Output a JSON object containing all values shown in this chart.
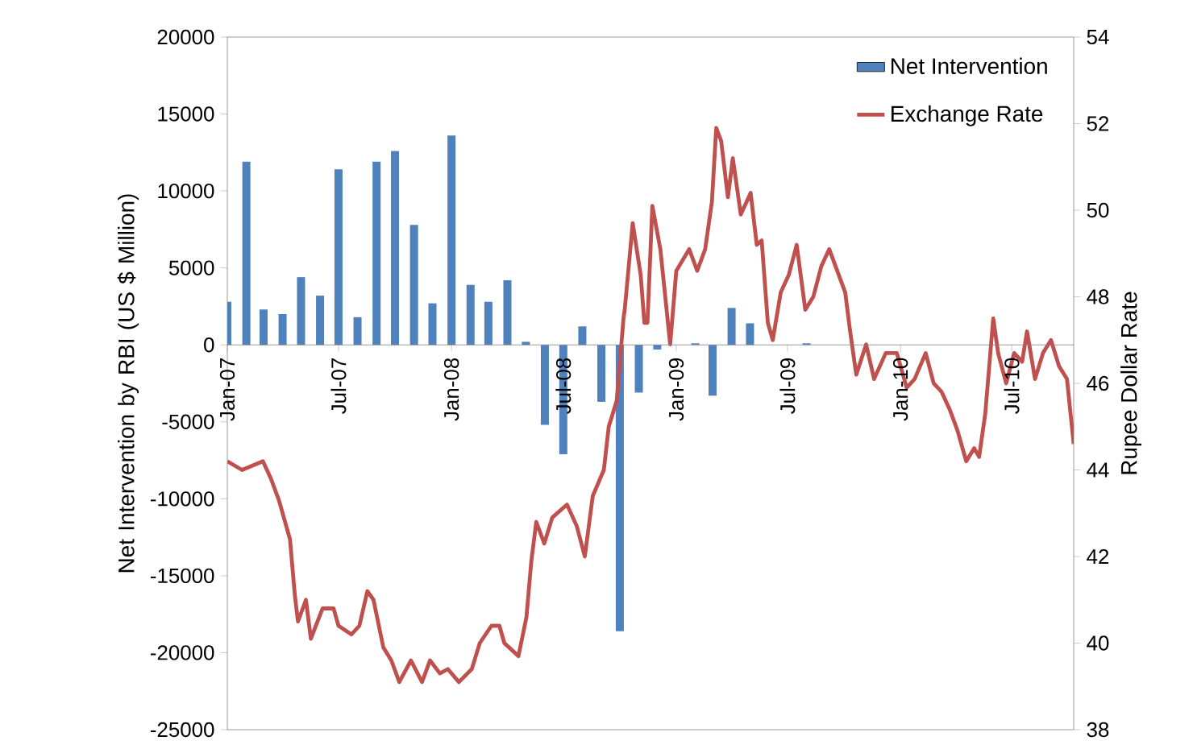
{
  "chart_data": {
    "type": "bar",
    "ylabel": "Net Intervention by RBI (US $ Million)",
    "y2label": "Rupee Dollar Rate",
    "legend": "top right",
    "xlim": [
      "2007-01-01",
      "2010-10-10"
    ],
    "xticks": [
      {
        "value": "2007-01-01",
        "label": "Jan-07"
      },
      {
        "value": "2007-07-01",
        "label": "Jul-07"
      },
      {
        "value": "2008-01-01",
        "label": "Jan-08"
      },
      {
        "value": "2008-07-01",
        "label": "Jul-08"
      },
      {
        "value": "2009-01-01",
        "label": "Jan-09"
      },
      {
        "value": "2009-07-01",
        "label": "Jul-09"
      },
      {
        "value": "2010-01-01",
        "label": "Jan-10"
      },
      {
        "value": "2010-07-01",
        "label": "Jul-10"
      }
    ],
    "ylim": [
      -25000,
      20000
    ],
    "yticks": [
      -25000,
      -20000,
      -15000,
      -10000,
      -5000,
      0,
      5000,
      10000,
      15000,
      20000
    ],
    "y2lim": [
      38,
      54
    ],
    "y2ticks": [
      38,
      40,
      42,
      44,
      46,
      48,
      50,
      52,
      54
    ],
    "series": [
      {
        "name": "Net Intervention",
        "color": "#4f81bd",
        "x": [
          "2007-01",
          "2007-02",
          "2007-03",
          "2007-04",
          "2007-05",
          "2007-06",
          "2007-07",
          "2007-08",
          "2007-09",
          "2007-10",
          "2007-11",
          "2007-12",
          "2008-01",
          "2008-02",
          "2008-03",
          "2008-04",
          "2008-05",
          "2008-06",
          "2008-07",
          "2008-08",
          "2008-09",
          "2008-10",
          "2008-11",
          "2008-12",
          "2009-01",
          "2009-02",
          "2009-03",
          "2009-04",
          "2009-05",
          "2009-06",
          "2009-07",
          "2009-08"
        ],
        "values": [
          2800,
          11900,
          2300,
          2000,
          4400,
          3200,
          11400,
          1800,
          11900,
          12600,
          7800,
          2700,
          13600,
          3900,
          2800,
          4200,
          200,
          -5200,
          -7100,
          1200,
          -3700,
          -18600,
          -3100,
          -300,
          null,
          100,
          -3300,
          2400,
          1400,
          0,
          0,
          100
        ]
      },
      {
        "name": "Exchange Rate",
        "type": "line",
        "axis": "y2",
        "color": "#c0504d",
        "x": [
          "2007-01-01",
          "2007-01-25",
          "2007-02-28",
          "2007-03-13",
          "2007-03-26",
          "2007-04-13",
          "2007-04-21",
          "2007-04-26",
          "2007-05-09",
          "2007-05-17",
          "2007-06-05",
          "2007-06-23",
          "2007-07-01",
          "2007-07-22",
          "2007-08-04",
          "2007-08-17",
          "2007-08-27",
          "2007-09-12",
          "2007-09-25",
          "2007-10-08",
          "2007-10-27",
          "2007-11-14",
          "2007-11-27",
          "2007-12-13",
          "2007-12-26",
          "2008-01-13",
          "2008-02-03",
          "2008-02-16",
          "2008-03-06",
          "2008-03-19",
          "2008-03-27",
          "2008-04-19",
          "2008-05-02",
          "2008-05-10",
          "2008-05-18",
          "2008-05-31",
          "2008-06-13",
          "2008-07-07",
          "2008-07-23",
          "2008-08-05",
          "2008-08-18",
          "2008-09-05",
          "2008-09-13",
          "2008-09-26",
          "2008-10-07",
          "2008-10-09",
          "2008-10-22",
          "2008-11-04",
          "2008-11-10",
          "2008-11-15",
          "2008-11-23",
          "2008-12-06",
          "2008-12-14",
          "2008-12-22",
          "2009-01-01",
          "2009-01-22",
          "2009-02-04",
          "2009-02-17",
          "2009-02-28",
          "2009-03-07",
          "2009-03-15",
          "2009-03-26",
          "2009-04-03",
          "2009-04-16",
          "2009-05-02",
          "2009-05-12",
          "2009-05-20",
          "2009-05-30",
          "2009-06-07",
          "2009-06-20",
          "2009-07-03",
          "2009-07-16",
          "2009-07-30",
          "2009-08-12",
          "2009-08-25",
          "2009-09-07",
          "2009-09-20",
          "2009-10-03",
          "2009-10-11",
          "2009-10-21",
          "2009-11-06",
          "2009-11-19",
          "2009-12-08",
          "2009-12-26",
          "2010-01-11",
          "2010-01-24",
          "2010-02-11",
          "2010-02-24",
          "2010-03-09",
          "2010-03-22",
          "2010-04-04",
          "2010-04-18",
          "2010-05-01",
          "2010-05-09",
          "2010-05-19",
          "2010-06-01",
          "2010-06-09",
          "2010-06-22",
          "2010-07-05",
          "2010-07-18",
          "2010-07-26",
          "2010-08-08",
          "2010-08-21",
          "2010-09-03",
          "2010-09-16",
          "2010-09-29",
          "2010-10-10"
        ],
        "values": [
          44.2,
          44.0,
          44.2,
          43.8,
          43.3,
          42.4,
          41.1,
          40.5,
          41.0,
          40.1,
          40.8,
          40.8,
          40.4,
          40.2,
          40.4,
          41.2,
          41.0,
          39.9,
          39.6,
          39.1,
          39.6,
          39.1,
          39.6,
          39.3,
          39.4,
          39.1,
          39.4,
          40.0,
          40.4,
          40.4,
          40.0,
          39.7,
          40.6,
          41.9,
          42.8,
          42.3,
          42.9,
          43.2,
          42.7,
          42.0,
          43.4,
          44.0,
          45.0,
          45.6,
          47.5,
          47.7,
          49.7,
          48.5,
          47.4,
          47.4,
          50.1,
          49.1,
          48.0,
          46.9,
          48.6,
          49.1,
          48.6,
          49.1,
          50.2,
          51.9,
          51.6,
          50.3,
          51.2,
          49.9,
          50.4,
          49.2,
          49.3,
          47.4,
          47.0,
          48.1,
          48.5,
          49.2,
          47.7,
          48.0,
          48.7,
          49.1,
          48.6,
          48.1,
          47.2,
          46.2,
          46.9,
          46.1,
          46.7,
          46.7,
          45.9,
          46.1,
          46.7,
          46.0,
          45.8,
          45.4,
          44.9,
          44.2,
          44.5,
          44.3,
          45.3,
          47.5,
          46.7,
          46.0,
          46.7,
          46.5,
          47.2,
          46.1,
          46.7,
          47.0,
          46.4,
          46.1,
          44.6
        ]
      }
    ]
  }
}
